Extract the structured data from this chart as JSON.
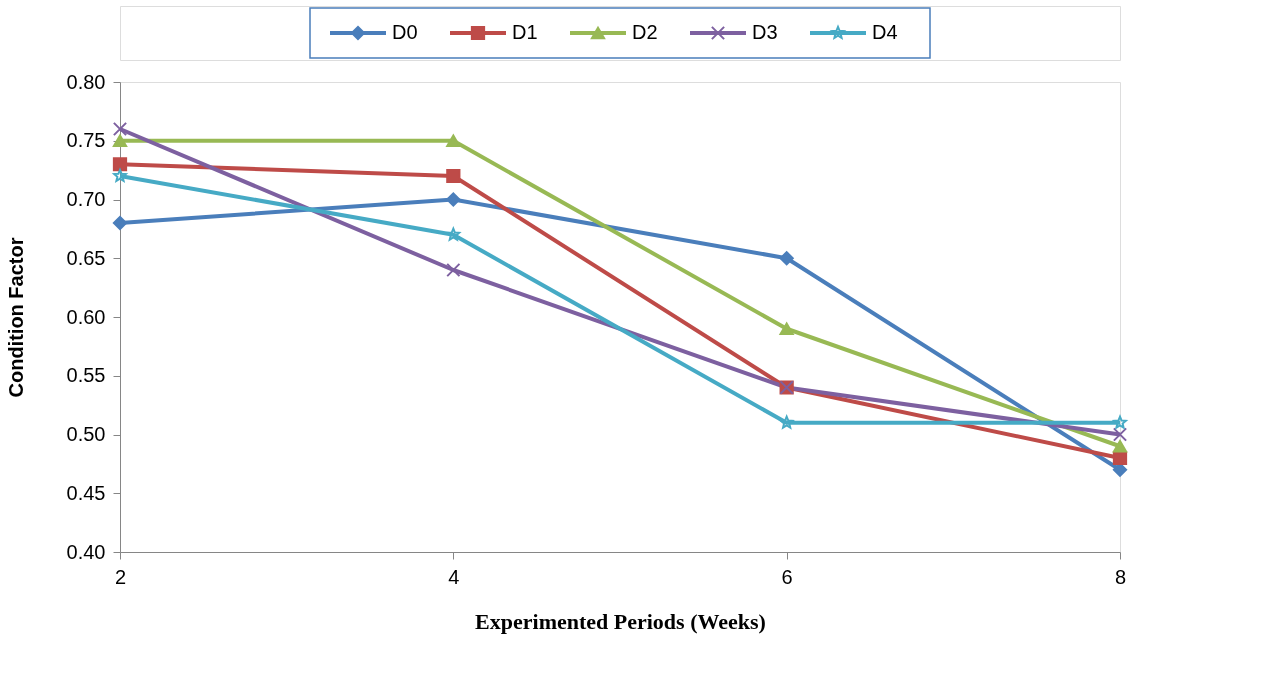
{
  "chart_data": {
    "type": "line",
    "xlabel": "Experimented Periods (Weeks)",
    "ylabel": "Condition Factor",
    "x": [
      2,
      4,
      6,
      8
    ],
    "xlim": [
      2,
      8
    ],
    "xticks": [
      2,
      4,
      6,
      8
    ],
    "ylim": [
      0.4,
      0.8
    ],
    "yticks": [
      {
        "value": 0.4,
        "label": "0.40"
      },
      {
        "value": 0.45,
        "label": "0.45"
      },
      {
        "value": 0.5,
        "label": "0.50"
      },
      {
        "value": 0.55,
        "label": "0.55"
      },
      {
        "value": 0.6,
        "label": "0.60"
      },
      {
        "value": 0.65,
        "label": "0.65"
      },
      {
        "value": 0.7,
        "label": "0.70"
      },
      {
        "value": 0.75,
        "label": "0.75"
      },
      {
        "value": 0.8,
        "label": "0.80"
      }
    ],
    "grid": false,
    "legend": "top",
    "line_style": "solid",
    "series": [
      {
        "name": "D0",
        "color": "#4a7ebb",
        "marker": "diamond",
        "values": [
          0.68,
          0.7,
          0.65,
          0.47
        ]
      },
      {
        "name": "D1",
        "color": "#be4b48",
        "marker": "square",
        "values": [
          0.73,
          0.72,
          0.54,
          0.48
        ]
      },
      {
        "name": "D2",
        "color": "#98b954",
        "marker": "triangle",
        "values": [
          0.75,
          0.75,
          0.59,
          0.49
        ]
      },
      {
        "name": "D3",
        "color": "#7d60a0",
        "marker": "cross",
        "values": [
          0.76,
          0.64,
          0.54,
          0.5
        ]
      },
      {
        "name": "D4",
        "color": "#46aac5",
        "marker": "star",
        "values": [
          0.72,
          0.67,
          0.51,
          0.51
        ]
      }
    ]
  }
}
